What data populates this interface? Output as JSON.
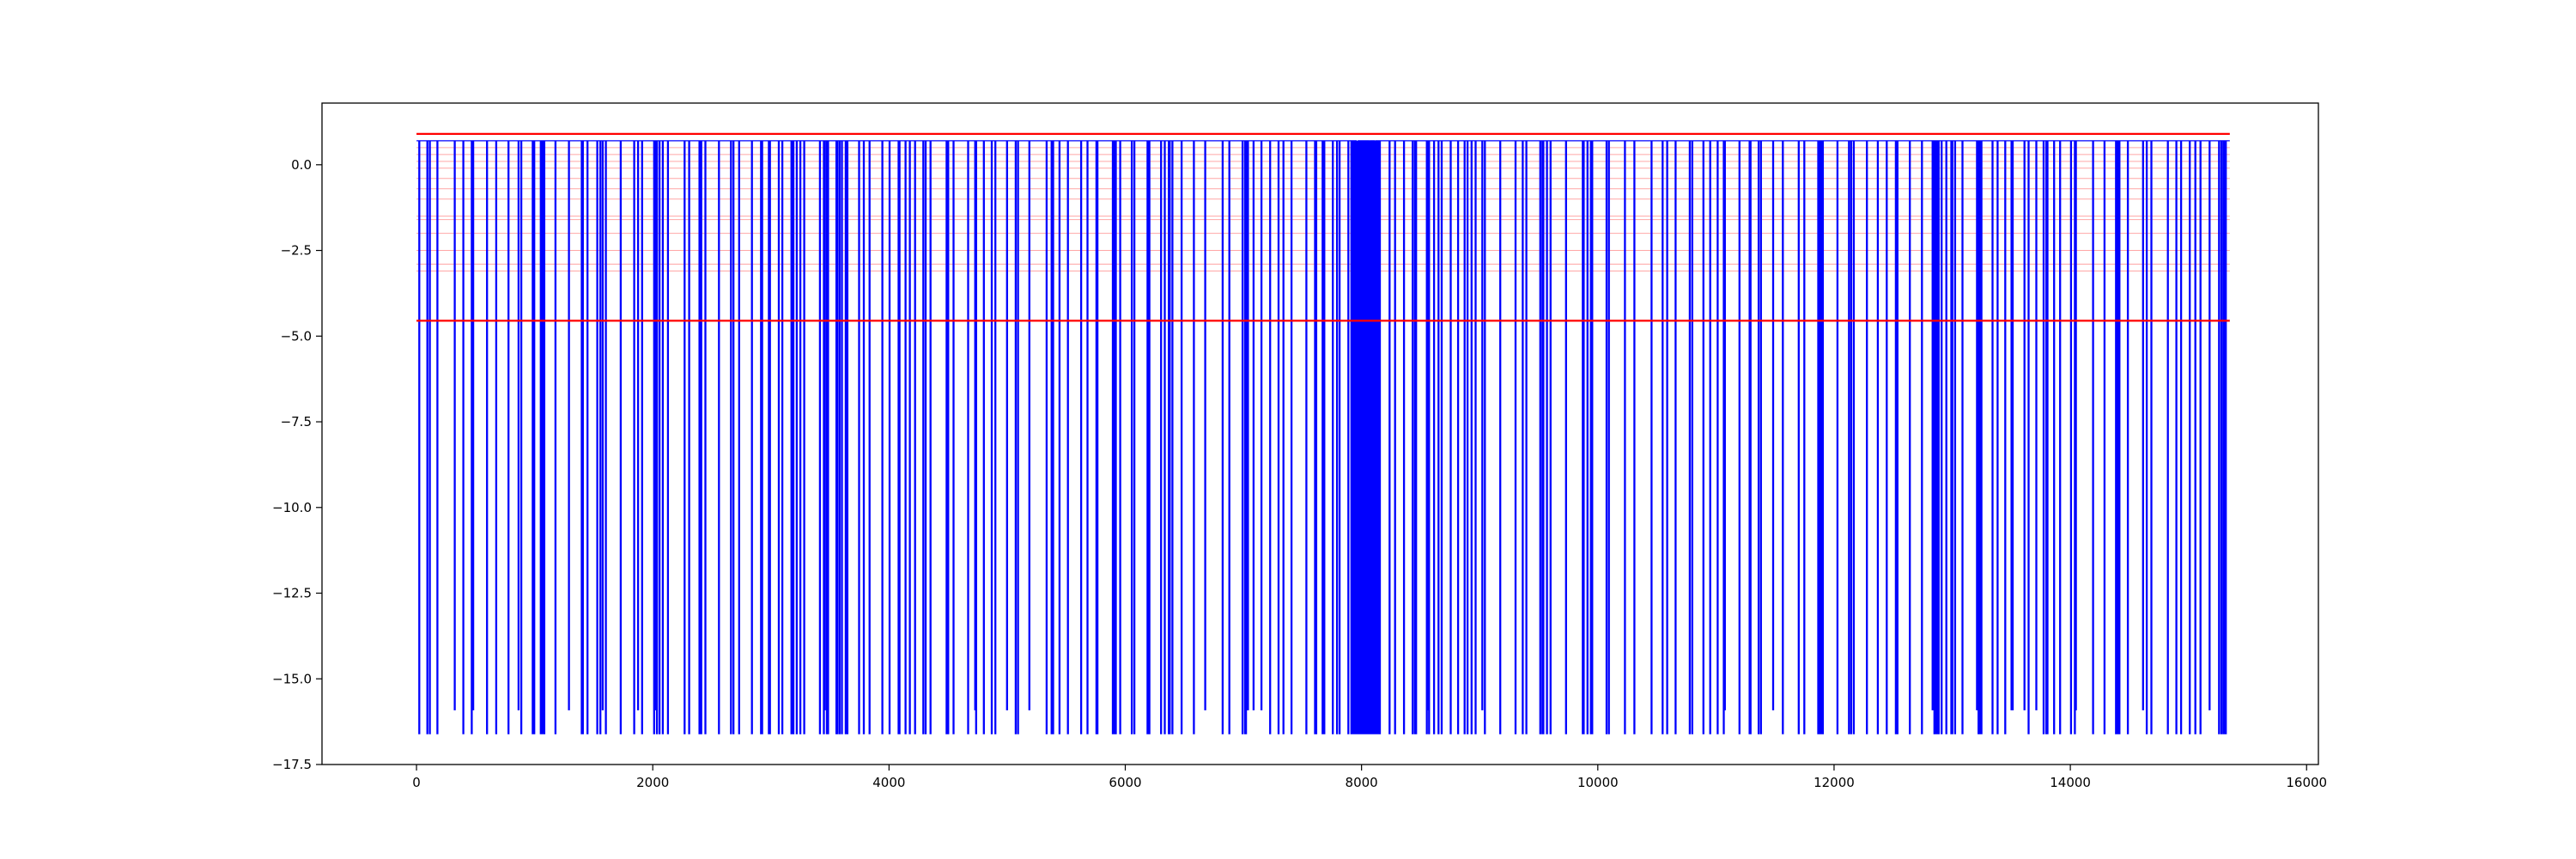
{
  "chart_data": {
    "type": "line",
    "title": "",
    "xlabel": "",
    "ylabel": "",
    "xlim": [
      -800,
      16100
    ],
    "ylim": [
      -17.5,
      1.8
    ],
    "x_ticks": [
      0,
      2000,
      4000,
      6000,
      8000,
      10000,
      12000,
      14000,
      16000
    ],
    "x_tick_labels": [
      "0",
      "2000",
      "4000",
      "6000",
      "8000",
      "10000",
      "12000",
      "14000",
      "16000"
    ],
    "y_ticks": [
      -17.5,
      -15.0,
      -12.5,
      -10.0,
      -7.5,
      -5.0,
      -2.5,
      0.0
    ],
    "y_tick_labels": [
      "−17.5",
      "−15.0",
      "−12.5",
      "−10.0",
      "−7.5",
      "−5.0",
      "−2.5",
      "0.0"
    ],
    "grid": false,
    "legend": "none",
    "series": [
      {
        "color": "#0000ff",
        "x_range": [
          0,
          15350
        ],
        "baseline": 0.7,
        "spike_min": -16.6,
        "spike_alt_min": -15.9,
        "dense_region": [
          7900,
          8150
        ]
      }
    ],
    "reference_lines": [
      {
        "y": 0.9,
        "color": "#ff0000",
        "x_range": [
          0,
          15350
        ]
      },
      {
        "y": -4.55,
        "color": "#ff0000",
        "x_range": [
          0,
          15350
        ]
      }
    ],
    "faint_reference_levels": [
      0.5,
      0.3,
      0.1,
      -0.1,
      -0.4,
      -0.7,
      -1.0,
      -1.5,
      -1.6,
      -2.0,
      -2.5,
      -2.9,
      -3.1
    ],
    "faint_line_color": "#ff0000"
  }
}
